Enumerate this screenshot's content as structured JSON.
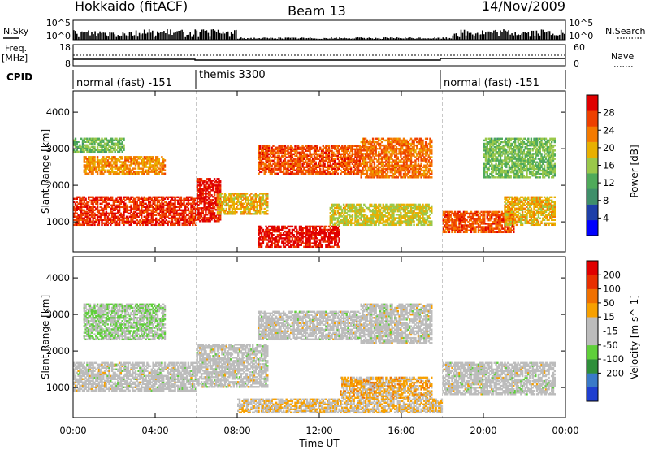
{
  "header": {
    "left": "Hokkaido (fitACF)",
    "center": "Beam 13",
    "right": "14/Nov/2009"
  },
  "top_panels": {
    "nsky_label": "N.Sky",
    "nsky_ticks": [
      "10^5",
      "10^0"
    ],
    "nsearch_label": "N.Search",
    "nsearch_ticks": [
      "10^5",
      "10^0"
    ],
    "freq_label_1": "Freq.",
    "freq_label_2": "[MHz]",
    "freq_ticks": [
      "18",
      "8"
    ],
    "nave_label": "Nave",
    "nave_ticks": [
      "60",
      "0"
    ],
    "cpid_label": "CPID",
    "cpid_segments": [
      {
        "text": "normal (fast) -151",
        "start_h": 0,
        "end_h": 6
      },
      {
        "text": "themis 3300",
        "start_h": 6,
        "end_h": 18
      },
      {
        "text": "normal (fast) -151",
        "start_h": 18,
        "end_h": 24
      }
    ]
  },
  "colors": {
    "power_scale": [
      "#0000ff",
      "#1e3fa8",
      "#3f8f6a",
      "#4faa5a",
      "#9ac84a",
      "#e8b000",
      "#f47a00",
      "#ee4000",
      "#e00000"
    ],
    "velocity_scale": [
      "#1f3fd0",
      "#3a7ac8",
      "#2f8f3a",
      "#5fcf3a",
      "#bcbcbc",
      "#bcbcbc",
      "#f7a000",
      "#f07000",
      "#e83000",
      "#e00000"
    ]
  },
  "chart_data": [
    {
      "type": "heatmap",
      "title": "Power",
      "xlabel": "Time UT",
      "ylabel": "Slant Range [km]",
      "x_ticks": [
        "00:00",
        "04:00",
        "08:00",
        "12:00",
        "16:00",
        "20:00",
        "00:00"
      ],
      "xlim_hours": [
        0,
        24
      ],
      "y_ticks": [
        1000,
        2000,
        3000,
        4000
      ],
      "ylim_km": [
        180,
        4580
      ],
      "colorbar_label": "Power [dB]",
      "colorbar_ticks": [
        "4",
        "8",
        "12",
        "16",
        "20",
        "24",
        "28"
      ],
      "colorbar_range": [
        0,
        32
      ],
      "regions": [
        {
          "t0": 0.0,
          "t1": 6.0,
          "r0": 900,
          "r1": 1700,
          "v": 28
        },
        {
          "t0": 0.5,
          "t1": 4.5,
          "r0": 2300,
          "r1": 2800,
          "v": 22
        },
        {
          "t0": 0.0,
          "t1": 2.5,
          "r0": 2900,
          "r1": 3300,
          "v": 14
        },
        {
          "t0": 6.0,
          "t1": 7.2,
          "r0": 1000,
          "r1": 2200,
          "v": 30
        },
        {
          "t0": 7.0,
          "t1": 9.5,
          "r0": 1200,
          "r1": 1800,
          "v": 20
        },
        {
          "t0": 9.0,
          "t1": 13.0,
          "r0": 300,
          "r1": 900,
          "v": 30
        },
        {
          "t0": 9.0,
          "t1": 14.0,
          "r0": 2300,
          "r1": 3100,
          "v": 26
        },
        {
          "t0": 12.5,
          "t1": 17.5,
          "r0": 900,
          "r1": 1500,
          "v": 18
        },
        {
          "t0": 14.0,
          "t1": 17.5,
          "r0": 2200,
          "r1": 3300,
          "v": 24
        },
        {
          "t0": 18.0,
          "t1": 21.5,
          "r0": 700,
          "r1": 1300,
          "v": 26
        },
        {
          "t0": 21.0,
          "t1": 23.5,
          "r0": 900,
          "r1": 1700,
          "v": 20
        },
        {
          "t0": 20.0,
          "t1": 23.5,
          "r0": 2200,
          "r1": 3300,
          "v": 14
        }
      ]
    },
    {
      "type": "heatmap",
      "title": "Velocity",
      "xlabel": "Time UT",
      "ylabel": "Slant Range [km]",
      "x_ticks": [
        "00:00",
        "04:00",
        "08:00",
        "12:00",
        "16:00",
        "20:00",
        "00:00"
      ],
      "xlim_hours": [
        0,
        24
      ],
      "y_ticks": [
        1000,
        2000,
        3000,
        4000
      ],
      "ylim_km": [
        180,
        4580
      ],
      "colorbar_label": "Velocity [m s^-1]",
      "colorbar_ticks": [
        "200",
        "100",
        "50",
        "15",
        "-15",
        "-50",
        "-100",
        "-200"
      ],
      "colorbar_range": [
        -250,
        250
      ],
      "regions": [
        {
          "t0": 0.0,
          "t1": 6.0,
          "r0": 900,
          "r1": 1700,
          "v": 0
        },
        {
          "t0": 0.5,
          "t1": 4.5,
          "r0": 2300,
          "r1": 3300,
          "v": -40
        },
        {
          "t0": 6.0,
          "t1": 9.5,
          "r0": 1000,
          "r1": 2200,
          "v": 0
        },
        {
          "t0": 9.0,
          "t1": 14.0,
          "r0": 2300,
          "r1": 3100,
          "v": 0
        },
        {
          "t0": 13.0,
          "t1": 17.5,
          "r0": 700,
          "r1": 1300,
          "v": 60
        },
        {
          "t0": 14.0,
          "t1": 17.5,
          "r0": 2200,
          "r1": 3300,
          "v": 0
        },
        {
          "t0": 18.0,
          "t1": 23.5,
          "r0": 800,
          "r1": 1700,
          "v": 0
        },
        {
          "t0": 8.0,
          "t1": 18.0,
          "r0": 300,
          "r1": 700,
          "v": 40
        }
      ]
    }
  ]
}
